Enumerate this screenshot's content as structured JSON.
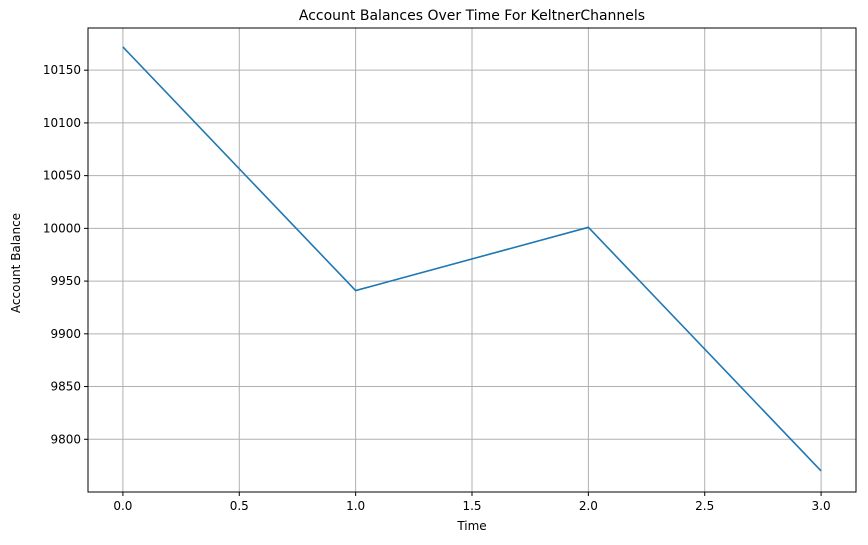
{
  "chart_data": {
    "type": "line",
    "title": "Account Balances Over Time For KeltnerChannels",
    "xlabel": "Time",
    "ylabel": "Account Balance",
    "x": [
      0,
      1,
      2,
      3
    ],
    "series": [
      {
        "values": [
          10172,
          9941,
          10001,
          9770
        ],
        "color": "#1f77b4"
      }
    ],
    "xlim": [
      -0.15,
      3.15
    ],
    "ylim": [
      9750,
      10190
    ],
    "xticks": [
      0,
      0.5,
      1,
      1.5,
      2,
      2.5,
      3
    ],
    "xtick_labels": [
      "0.0",
      "0.5",
      "1.0",
      "1.5",
      "2.0",
      "2.5",
      "3.0"
    ],
    "yticks": [
      9800,
      9850,
      9900,
      9950,
      10000,
      10050,
      10100,
      10150
    ],
    "ytick_labels": [
      "9800",
      "9850",
      "9900",
      "9950",
      "10000",
      "10050",
      "10100",
      "10150"
    ],
    "grid": true,
    "grid_color": "#b0b0b0"
  }
}
